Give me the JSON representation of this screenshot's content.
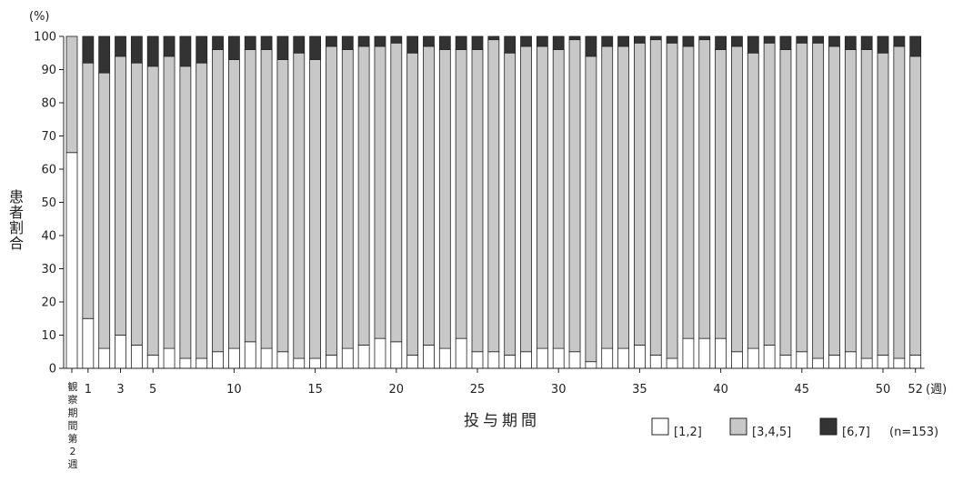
{
  "chart_data": {
    "type": "bar",
    "stacked": true,
    "y_unit_label": "(%)",
    "ylabel": "患者割合",
    "xlabel": "投与期間",
    "x_unit_label": "(週)",
    "ylim": [
      0,
      100
    ],
    "yticks": [
      0,
      10,
      20,
      30,
      40,
      50,
      60,
      70,
      80,
      90,
      100
    ],
    "baseline_label": "観察期間第2週",
    "x_tick_labels": [
      "1",
      "3",
      "5",
      "10",
      "15",
      "20",
      "25",
      "30",
      "35",
      "40",
      "45",
      "50",
      "52"
    ],
    "categories": [
      "観察期間第2週",
      "1",
      "2",
      "3",
      "4",
      "5",
      "6",
      "7",
      "8",
      "9",
      "10",
      "11",
      "12",
      "13",
      "14",
      "15",
      "16",
      "17",
      "18",
      "19",
      "20",
      "21",
      "22",
      "23",
      "24",
      "25",
      "26",
      "27",
      "28",
      "29",
      "30",
      "31",
      "32",
      "33",
      "34",
      "35",
      "36",
      "37",
      "38",
      "39",
      "40",
      "41",
      "42",
      "43",
      "44",
      "45",
      "46",
      "47",
      "48",
      "49",
      "50",
      "51",
      "52"
    ],
    "series": [
      {
        "name": "[1,2]",
        "color": "#ffffff",
        "values": [
          65,
          15,
          6,
          10,
          7,
          4,
          6,
          3,
          3,
          5,
          6,
          8,
          6,
          5,
          3,
          3,
          4,
          6,
          7,
          9,
          8,
          4,
          7,
          6,
          9,
          5,
          5,
          4,
          5,
          6,
          6,
          5,
          2,
          6,
          6,
          7,
          4,
          3,
          9,
          9,
          9,
          5,
          6,
          7,
          4,
          5,
          3,
          4,
          5,
          3,
          4,
          3,
          4
        ]
      },
      {
        "name": "[3,4,5]",
        "color": "#c8c8c8",
        "values": [
          35,
          77,
          83,
          84,
          85,
          87,
          88,
          88,
          89,
          91,
          87,
          88,
          90,
          88,
          92,
          90,
          93,
          90,
          90,
          88,
          90,
          91,
          90,
          90,
          87,
          91,
          94,
          91,
          92,
          91,
          90,
          94,
          92,
          91,
          91,
          91,
          95,
          95,
          88,
          90,
          87,
          92,
          89,
          91,
          92,
          93,
          95,
          93,
          91,
          93,
          91,
          94,
          90
        ]
      },
      {
        "name": "[6,7]",
        "color": "#333333",
        "values": [
          0,
          8,
          11,
          6,
          8,
          9,
          6,
          9,
          8,
          4,
          7,
          4,
          4,
          7,
          5,
          7,
          3,
          4,
          3,
          3,
          2,
          5,
          3,
          4,
          4,
          4,
          1,
          5,
          3,
          3,
          4,
          1,
          6,
          3,
          3,
          2,
          1,
          2,
          3,
          1,
          4,
          3,
          5,
          2,
          4,
          2,
          2,
          3,
          4,
          4,
          5,
          3,
          6
        ]
      }
    ],
    "legend_position": "bottom-right",
    "annotation": "(n=153)",
    "grid": false
  }
}
